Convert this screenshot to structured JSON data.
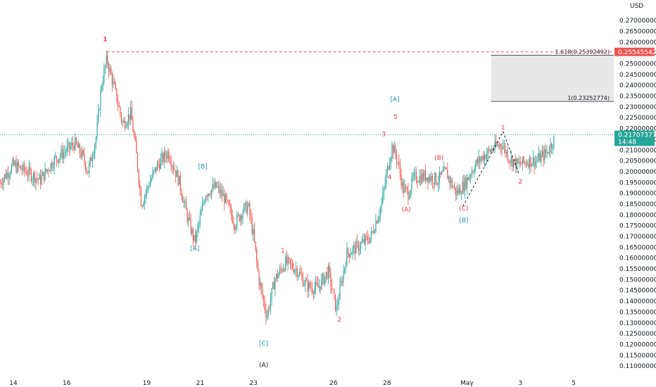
{
  "chart_data": {
    "type": "candlestick",
    "price_axis": {
      "unit": "USD",
      "range": [
        0.1045,
        0.2795
      ],
      "ticks": [
        "0.10500000",
        "0.11000000",
        "0.11500000",
        "0.12000000",
        "0.12500000",
        "0.13000000",
        "0.13500000",
        "0.14000000",
        "0.14500000",
        "0.15000000",
        "0.15500000",
        "0.16000000",
        "0.16500000",
        "0.17000000",
        "0.17500000",
        "0.18000000",
        "0.18500000",
        "0.19000000",
        "0.19500000",
        "0.20000000",
        "0.20500000",
        "0.21000000",
        "0.21500000",
        "0.22000000",
        "0.22500000",
        "0.23000000",
        "0.23500000",
        "0.24000000",
        "0.24500000",
        "0.25000000",
        "0.25500000",
        "0.26000000",
        "0.26500000",
        "0.27000000",
        "0.27500000"
      ]
    },
    "time_axis": {
      "ticks": [
        {
          "label": "14",
          "day": 14
        },
        {
          "label": "16",
          "day": 16
        },
        {
          "label": "19",
          "day": 19
        },
        {
          "label": "21",
          "day": 21
        },
        {
          "label": "23",
          "day": 23
        },
        {
          "label": "26",
          "day": 26
        },
        {
          "label": "28",
          "day": 28
        },
        {
          "label": "May",
          "day": 31
        },
        {
          "label": "3",
          "day": 33
        },
        {
          "label": "5",
          "day": 35
        }
      ],
      "range": [
        13.5,
        36.5
      ]
    },
    "colors": {
      "up": "#26a69a",
      "down": "#ef5350",
      "last_price": "#26a69a",
      "high_line": "#ef5350",
      "fib_box": "#e0e0e0"
    },
    "price_path": [
      [
        13.5,
        0.195
      ],
      [
        14.0,
        0.203
      ],
      [
        14.5,
        0.2
      ],
      [
        15.0,
        0.196
      ],
      [
        15.5,
        0.205
      ],
      [
        16.0,
        0.21
      ],
      [
        16.3,
        0.213
      ],
      [
        16.6,
        0.207
      ],
      [
        16.8,
        0.2
      ],
      [
        17.1,
        0.216
      ],
      [
        17.3,
        0.24
      ],
      [
        17.5,
        0.252
      ],
      [
        17.8,
        0.238
      ],
      [
        18.1,
        0.222
      ],
      [
        18.4,
        0.227
      ],
      [
        18.6,
        0.209
      ],
      [
        18.8,
        0.185
      ],
      [
        19.1,
        0.195
      ],
      [
        19.4,
        0.203
      ],
      [
        19.8,
        0.209
      ],
      [
        20.2,
        0.196
      ],
      [
        20.5,
        0.18
      ],
      [
        20.8,
        0.167
      ],
      [
        21.2,
        0.19
      ],
      [
        21.6,
        0.193
      ],
      [
        21.9,
        0.188
      ],
      [
        22.3,
        0.176
      ],
      [
        22.6,
        0.182
      ],
      [
        22.8,
        0.184
      ],
      [
        23.0,
        0.17
      ],
      [
        23.2,
        0.15
      ],
      [
        23.5,
        0.133
      ],
      [
        23.8,
        0.15
      ],
      [
        24.2,
        0.158
      ],
      [
        24.6,
        0.155
      ],
      [
        25.0,
        0.147
      ],
      [
        25.4,
        0.146
      ],
      [
        25.8,
        0.154
      ],
      [
        26.1,
        0.136
      ],
      [
        26.5,
        0.162
      ],
      [
        27.0,
        0.166
      ],
      [
        27.4,
        0.17
      ],
      [
        27.8,
        0.185
      ],
      [
        28.0,
        0.2
      ],
      [
        28.2,
        0.212
      ],
      [
        28.4,
        0.205
      ],
      [
        28.6,
        0.192
      ],
      [
        28.8,
        0.19
      ],
      [
        29.0,
        0.197
      ],
      [
        29.5,
        0.198
      ],
      [
        29.9,
        0.196
      ],
      [
        30.2,
        0.2
      ],
      [
        30.6,
        0.19
      ],
      [
        30.9,
        0.194
      ],
      [
        31.3,
        0.203
      ],
      [
        31.6,
        0.207
      ],
      [
        32.0,
        0.211
      ],
      [
        32.3,
        0.213
      ],
      [
        32.6,
        0.206
      ],
      [
        32.9,
        0.203
      ],
      [
        33.3,
        0.205
      ],
      [
        33.6,
        0.205
      ],
      [
        34.0,
        0.209
      ],
      [
        34.3,
        0.216
      ]
    ],
    "last_price": {
      "value": "0.21707377",
      "time": "14:48"
    },
    "high_marker": {
      "value": "0.25545542",
      "start_day": 17.5
    },
    "fib_levels": [
      {
        "label": "1.618(0.25392492)",
        "price": 0.25392492
      },
      {
        "label": "1(0.23252774)",
        "price": 0.23252774
      }
    ],
    "fib_box": {
      "start_day": 31.9
    },
    "dashed_path": [
      {
        "day": 30.85,
        "price": 0.184
      },
      {
        "day": 32.35,
        "price": 0.2185
      },
      {
        "day": 32.95,
        "price": 0.199
      }
    ],
    "wave_labels": [
      {
        "text": "1",
        "day": 17.44,
        "price": 0.2605,
        "color": "#f23645",
        "size": "big"
      },
      {
        "text": "[B]",
        "day": 21.1,
        "price": 0.2015,
        "color": "#2196a5"
      },
      {
        "text": "[A]",
        "day": 20.8,
        "price": 0.1635,
        "color": "#2196a5"
      },
      {
        "text": "1",
        "day": 24.1,
        "price": 0.1625,
        "color": "#f23645"
      },
      {
        "text": "[C]",
        "day": 23.38,
        "price": 0.1195,
        "color": "#2196a5"
      },
      {
        "text": "(A)",
        "day": 23.38,
        "price": 0.1095,
        "color": "#131722",
        "size": "mid"
      },
      {
        "text": "2",
        "day": 26.22,
        "price": 0.1305,
        "color": "#f23645"
      },
      {
        "text": "3",
        "day": 27.88,
        "price": 0.2165,
        "color": "#f23645"
      },
      {
        "text": "[A]",
        "day": 28.3,
        "price": 0.2325,
        "color": "#2196a5"
      },
      {
        "text": "5",
        "day": 28.32,
        "price": 0.2245,
        "color": "#f23645"
      },
      {
        "text": "4",
        "day": 28.1,
        "price": 0.1965,
        "color": "#f23645"
      },
      {
        "text": "(A)",
        "day": 28.72,
        "price": 0.1815,
        "color": "#f23645"
      },
      {
        "text": "(B)",
        "day": 29.95,
        "price": 0.2055,
        "color": "#f23645"
      },
      {
        "text": "(C)",
        "day": 30.88,
        "price": 0.182,
        "color": "#f23645"
      },
      {
        "text": "[B]",
        "day": 30.88,
        "price": 0.1765,
        "color": "#2196a5"
      },
      {
        "text": "1",
        "day": 32.35,
        "price": 0.2195,
        "color": "#f23645"
      },
      {
        "text": "2",
        "day": 33.0,
        "price": 0.1945,
        "color": "#f23645"
      }
    ]
  }
}
